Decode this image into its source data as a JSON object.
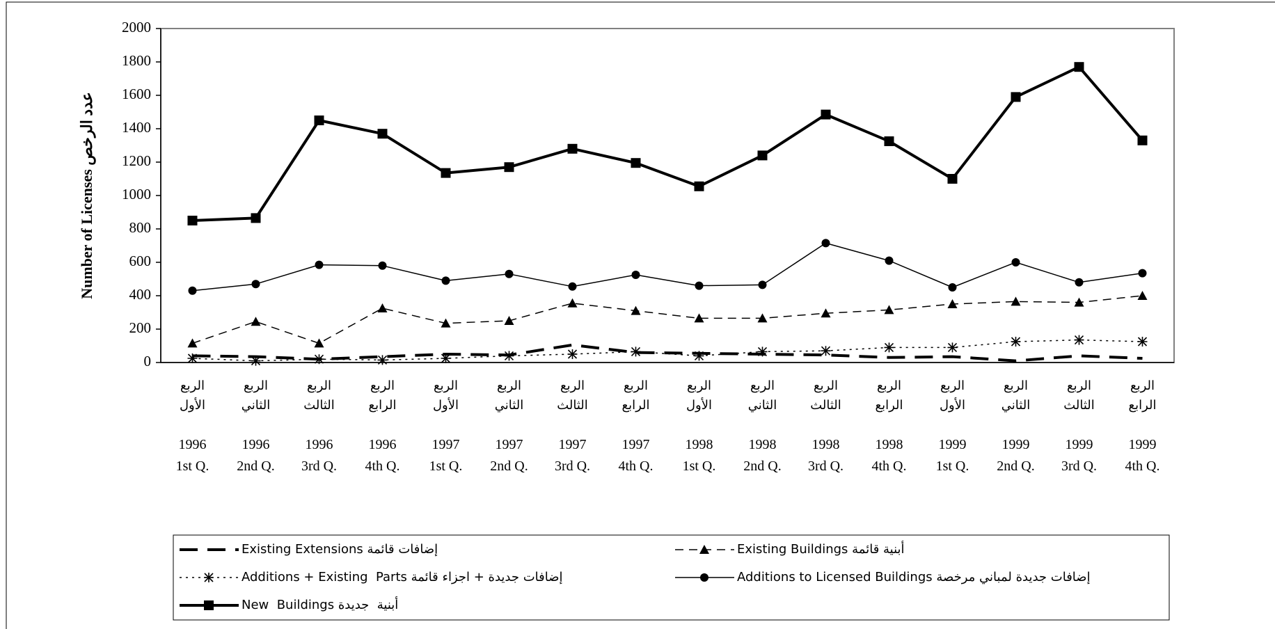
{
  "chart_data": {
    "type": "line",
    "y_label": "Number of Licenses عدد الرخص",
    "categories": [
      "1996\n1st Q.",
      "1996\n2nd Q.",
      "1996\n3rd Q.",
      "1996\n4th Q.",
      "1997\n1st Q.",
      "1997\n2nd Q.",
      "1997\n3rd Q.",
      "1997\n4th Q.",
      "1998\n1st Q.",
      "1998\n2nd Q.",
      "1998\n3rd Q.",
      "1998\n4th Q.",
      "1999\n1st Q.",
      "1999\n2nd Q.",
      "1999\n3rd Q.",
      "1999\n4th Q."
    ],
    "categories_ar": [
      "الربع\nالأول",
      "الربع\nالثاني",
      "الربع\nالثالث",
      "الربع\nالرابع",
      "الربع\nالأول",
      "الربع\nالثاني",
      "الربع\nالثالث",
      "الربع\nالرابع",
      "الربع\nالأول",
      "الربع\nالثاني",
      "الربع\nالثالث",
      "الربع\nالرابع",
      "الربع\nالأول",
      "الربع\nالثاني",
      "الربع\nالثالث",
      "الربع\nالرابع"
    ],
    "ylim": [
      0,
      2000
    ],
    "yticks": [
      0,
      200,
      400,
      600,
      800,
      1000,
      1200,
      1400,
      1600,
      1800,
      2000
    ],
    "series": [
      {
        "name": "Existing Extensions إضافات قائمة",
        "color": "#000000",
        "line_style": "longdash",
        "marker": "none",
        "line_width": 4,
        "values": [
          40,
          35,
          20,
          35,
          50,
          45,
          105,
          60,
          55,
          50,
          45,
          30,
          35,
          10,
          40,
          25
        ]
      },
      {
        "name": "Existing Buildings أبنية قائمة",
        "color": "#000000",
        "line_style": "dash",
        "marker": "triangle",
        "line_width": 1.5,
        "values": [
          115,
          245,
          115,
          325,
          235,
          250,
          355,
          310,
          265,
          265,
          295,
          315,
          350,
          365,
          360,
          400
        ]
      },
      {
        "name": "Additions + Existing  Parts إضافات جديدة + اجزاء قائمة",
        "color": "#000000",
        "line_style": "dot",
        "marker": "asterisk",
        "line_width": 1.5,
        "values": [
          25,
          10,
          20,
          15,
          25,
          40,
          50,
          65,
          40,
          65,
          70,
          90,
          90,
          125,
          135,
          125
        ]
      },
      {
        "name": "Additions to Licensed Buildings إضافات جديدة لمباني مرخصة",
        "color": "#000000",
        "line_style": "solid",
        "marker": "circle",
        "line_width": 1.5,
        "values": [
          430,
          470,
          585,
          580,
          490,
          530,
          455,
          525,
          460,
          465,
          715,
          610,
          450,
          600,
          480,
          535
        ]
      },
      {
        "name": "New  Buildings أبنية  جديدة",
        "color": "#000000",
        "line_style": "solid",
        "marker": "square",
        "line_width": 4,
        "values": [
          850,
          865,
          1450,
          1370,
          1135,
          1170,
          1280,
          1195,
          1055,
          1240,
          1485,
          1325,
          1100,
          1590,
          1770,
          1330
        ]
      }
    ]
  }
}
